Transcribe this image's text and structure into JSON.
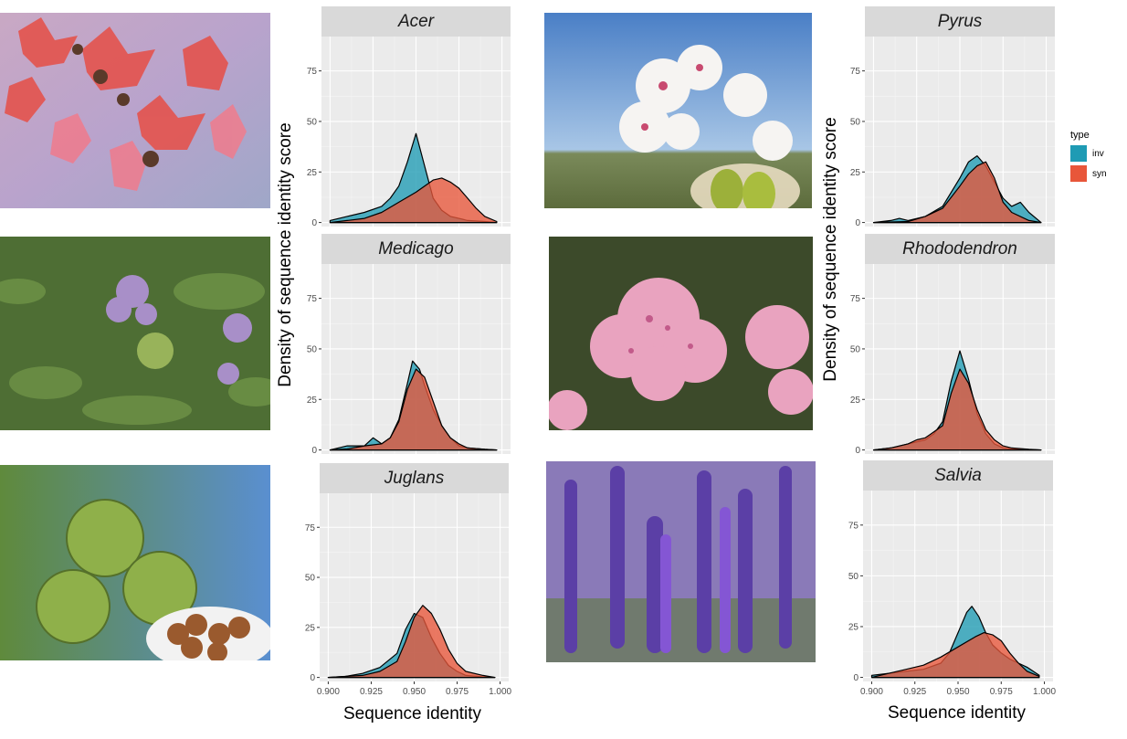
{
  "labels": {
    "ylabel": "Density of sequence identity score",
    "xlabel": "Sequence identity"
  },
  "legend": {
    "title": "type",
    "items": [
      {
        "name": "inv",
        "color": "#1f9bb4"
      },
      {
        "name": "syn",
        "color": "#e8563a"
      }
    ]
  },
  "photos": [
    {
      "subject": "red maple leaves",
      "icon": "maple-leaf-icon"
    },
    {
      "subject": "white pear blossoms with pears",
      "icon": "pear-blossom-icon"
    },
    {
      "subject": "purple alfalfa flowers",
      "icon": "alfalfa-flower-icon"
    },
    {
      "subject": "pink rhododendron flowers",
      "icon": "rhododendron-flower-icon"
    },
    {
      "subject": "green walnut husks with nuts",
      "icon": "walnut-icon"
    },
    {
      "subject": "purple salvia spikes",
      "icon": "salvia-flower-icon"
    }
  ],
  "chart_data": [
    {
      "type": "area",
      "title": "Acer",
      "xlim": [
        0.895,
        1.005
      ],
      "ylim": [
        -2,
        92
      ],
      "x_ticks": [
        0.9,
        0.925,
        0.95,
        0.975,
        1.0
      ],
      "y_ticks": [
        0,
        25,
        50,
        75
      ],
      "series": [
        {
          "name": "inv",
          "x": [
            0.9,
            0.91,
            0.92,
            0.93,
            0.935,
            0.94,
            0.945,
            0.95,
            0.955,
            0.96,
            0.965,
            0.97,
            0.975,
            0.98,
            0.99,
            0.997
          ],
          "y": [
            1,
            3,
            5,
            8,
            12,
            18,
            30,
            44,
            28,
            12,
            6,
            3,
            2,
            1,
            0.5,
            0
          ]
        },
        {
          "name": "syn",
          "x": [
            0.9,
            0.91,
            0.92,
            0.93,
            0.94,
            0.95,
            0.96,
            0.965,
            0.97,
            0.975,
            0.98,
            0.985,
            0.99,
            0.997
          ],
          "y": [
            0,
            1,
            2,
            5,
            10,
            15,
            21,
            22,
            20,
            17,
            12,
            7,
            3,
            0.5
          ]
        }
      ]
    },
    {
      "type": "area",
      "title": "Pyrus",
      "xlim": [
        0.895,
        1.005
      ],
      "ylim": [
        -2,
        92
      ],
      "x_ticks": [
        0.9,
        0.925,
        0.95,
        0.975,
        1.0
      ],
      "y_ticks": [
        0,
        25,
        50,
        75
      ],
      "series": [
        {
          "name": "inv",
          "x": [
            0.9,
            0.91,
            0.915,
            0.92,
            0.93,
            0.94,
            0.95,
            0.955,
            0.96,
            0.965,
            0.97,
            0.975,
            0.98,
            0.985,
            0.99,
            0.997
          ],
          "y": [
            0,
            1,
            2,
            1,
            3,
            8,
            22,
            30,
            33,
            28,
            20,
            12,
            8,
            10,
            5,
            0
          ]
        },
        {
          "name": "syn",
          "x": [
            0.9,
            0.92,
            0.93,
            0.94,
            0.95,
            0.955,
            0.96,
            0.965,
            0.97,
            0.975,
            0.98,
            0.99,
            0.997
          ],
          "y": [
            0,
            0.5,
            3,
            7,
            18,
            24,
            28,
            30,
            22,
            10,
            5,
            1,
            0
          ]
        }
      ]
    },
    {
      "type": "area",
      "title": "Medicago",
      "xlim": [
        0.895,
        1.005
      ],
      "ylim": [
        -2,
        92
      ],
      "x_ticks": [
        0.9,
        0.925,
        0.95,
        0.975,
        1.0
      ],
      "y_ticks": [
        0,
        25,
        50,
        75
      ],
      "series": [
        {
          "name": "inv",
          "x": [
            0.9,
            0.91,
            0.92,
            0.925,
            0.93,
            0.935,
            0.94,
            0.945,
            0.948,
            0.952,
            0.955,
            0.96,
            0.965,
            0.97,
            0.975,
            0.98,
            0.99,
            0.997
          ],
          "y": [
            0,
            2,
            2,
            6,
            3,
            6,
            15,
            33,
            44,
            40,
            32,
            20,
            12,
            6,
            2,
            1,
            0.3,
            0
          ]
        },
        {
          "name": "syn",
          "x": [
            0.9,
            0.91,
            0.92,
            0.93,
            0.935,
            0.94,
            0.945,
            0.95,
            0.955,
            0.96,
            0.965,
            0.97,
            0.975,
            0.98,
            0.99,
            0.997
          ],
          "y": [
            0,
            0.5,
            2,
            3,
            6,
            14,
            30,
            40,
            36,
            24,
            12,
            6,
            3,
            1,
            0.3,
            0
          ]
        }
      ]
    },
    {
      "type": "area",
      "title": "Rhododendron",
      "xlim": [
        0.895,
        1.005
      ],
      "ylim": [
        -2,
        92
      ],
      "x_ticks": [
        0.9,
        0.925,
        0.95,
        0.975,
        1.0
      ],
      "y_ticks": [
        0,
        25,
        50,
        75
      ],
      "series": [
        {
          "name": "inv",
          "x": [
            0.9,
            0.91,
            0.92,
            0.93,
            0.935,
            0.94,
            0.945,
            0.95,
            0.955,
            0.96,
            0.965,
            0.97,
            0.975,
            0.98,
            0.99,
            0.997
          ],
          "y": [
            0,
            1,
            3,
            5,
            8,
            14,
            34,
            49,
            35,
            18,
            8,
            3,
            1,
            0.5,
            0.2,
            0
          ]
        },
        {
          "name": "syn",
          "x": [
            0.9,
            0.91,
            0.92,
            0.925,
            0.93,
            0.94,
            0.945,
            0.95,
            0.955,
            0.96,
            0.965,
            0.97,
            0.975,
            0.98,
            0.99,
            0.997
          ],
          "y": [
            0,
            1,
            3,
            5,
            6,
            12,
            28,
            40,
            33,
            20,
            10,
            5,
            2,
            1,
            0.3,
            0
          ]
        }
      ]
    },
    {
      "type": "area",
      "title": "Juglans",
      "xlim": [
        0.895,
        1.005
      ],
      "ylim": [
        -2,
        92
      ],
      "x_ticks": [
        0.9,
        0.925,
        0.95,
        0.975,
        1.0
      ],
      "y_ticks": [
        0,
        25,
        50,
        75
      ],
      "series": [
        {
          "name": "inv",
          "x": [
            0.9,
            0.91,
            0.92,
            0.93,
            0.94,
            0.945,
            0.95,
            0.955,
            0.96,
            0.965,
            0.97,
            0.975,
            0.98,
            0.99,
            0.997
          ],
          "y": [
            0,
            0.5,
            2,
            5,
            12,
            24,
            32,
            30,
            20,
            12,
            6,
            3,
            1,
            0.3,
            0
          ]
        },
        {
          "name": "syn",
          "x": [
            0.9,
            0.92,
            0.93,
            0.94,
            0.945,
            0.95,
            0.955,
            0.96,
            0.965,
            0.97,
            0.975,
            0.98,
            0.99,
            0.997
          ],
          "y": [
            0,
            1,
            3,
            8,
            18,
            30,
            36,
            32,
            24,
            14,
            7,
            3,
            1,
            0
          ]
        }
      ]
    },
    {
      "type": "area",
      "title": "Salvia",
      "xlim": [
        0.895,
        1.005
      ],
      "ylim": [
        -2,
        92
      ],
      "x_ticks": [
        0.9,
        0.925,
        0.95,
        0.975,
        1.0
      ],
      "y_ticks": [
        0,
        25,
        50,
        75
      ],
      "series": [
        {
          "name": "inv",
          "x": [
            0.9,
            0.91,
            0.92,
            0.93,
            0.94,
            0.945,
            0.95,
            0.955,
            0.958,
            0.962,
            0.966,
            0.97,
            0.975,
            0.98,
            0.985,
            0.99,
            0.997
          ],
          "y": [
            1,
            2,
            3,
            4,
            7,
            12,
            22,
            32,
            35,
            30,
            22,
            16,
            12,
            9,
            7,
            5,
            1
          ]
        },
        {
          "name": "syn",
          "x": [
            0.9,
            0.91,
            0.92,
            0.93,
            0.94,
            0.95,
            0.96,
            0.965,
            0.97,
            0.975,
            0.98,
            0.985,
            0.99,
            0.997
          ],
          "y": [
            0,
            2,
            4,
            6,
            10,
            15,
            20,
            22,
            21,
            18,
            12,
            7,
            3,
            0.5
          ]
        }
      ]
    }
  ]
}
